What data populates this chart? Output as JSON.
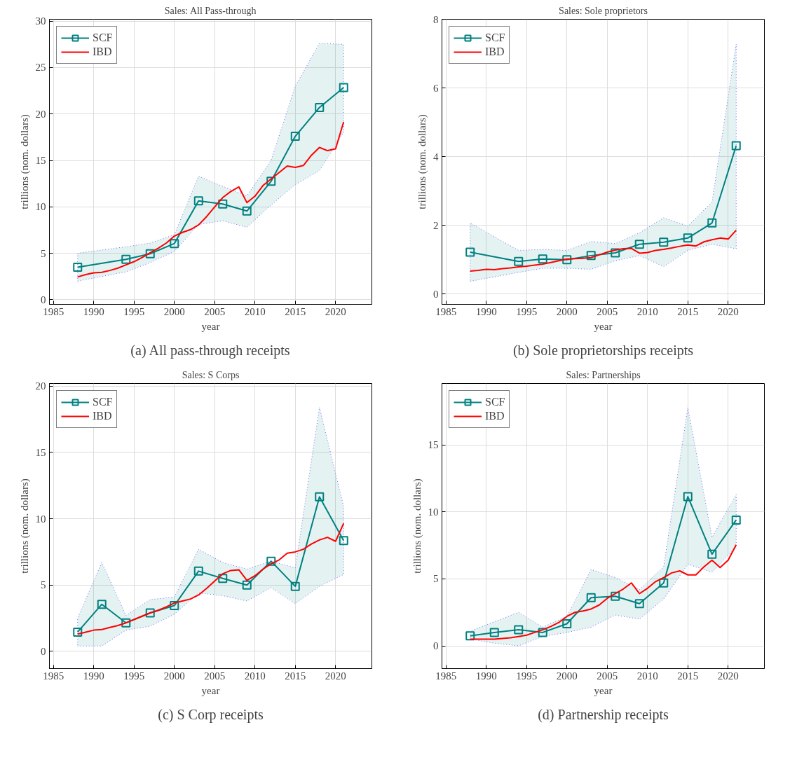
{
  "chart_data": [
    {
      "type": "line",
      "title": "Sales: All Pass-through",
      "xlabel": "year",
      "ylabel": "trillions (nom. dollars)",
      "annotations": [
        "(a) All pass-through receipts"
      ],
      "xlim": [
        1984.5,
        2024.5
      ],
      "xticks": [
        1985,
        1990,
        1995,
        2000,
        2005,
        2010,
        2015,
        2020
      ],
      "ylim": [
        -0.5,
        30.2
      ],
      "yticks": [
        0,
        5,
        10,
        15,
        20,
        25,
        30
      ],
      "grid": true,
      "legend": "top left",
      "series": [
        {
          "name": "SCF",
          "color": "#008080",
          "marker": "square",
          "x": [
            1988,
            1994,
            1997,
            2000,
            2003,
            2006,
            2009,
            2012,
            2015,
            2018,
            2021
          ],
          "values": [
            3.5,
            4.35,
            4.95,
            6.05,
            10.65,
            10.3,
            9.55,
            12.75,
            17.6,
            20.7,
            22.85
          ],
          "lower": [
            2.0,
            3.0,
            4.0,
            5.2,
            8.1,
            8.5,
            7.8,
            10.2,
            12.4,
            13.9,
            18.0
          ],
          "upper": [
            5.0,
            5.7,
            6.1,
            7.0,
            13.3,
            12.2,
            11.2,
            15.0,
            23.0,
            27.6,
            27.5
          ]
        },
        {
          "name": "IBD",
          "color": "#ff0000",
          "marker": "none",
          "x": [
            1988,
            1989,
            1990,
            1991,
            1992,
            1993,
            1994,
            1995,
            1996,
            1997,
            1998,
            1999,
            2000,
            2001,
            2002,
            2003,
            2004,
            2005,
            2006,
            2007,
            2008,
            2009,
            2010,
            2011,
            2012,
            2013,
            2014,
            2015,
            2016,
            2017,
            2018,
            2019,
            2020,
            2021
          ],
          "values": [
            2.45,
            2.7,
            2.9,
            2.95,
            3.15,
            3.4,
            3.75,
            4.1,
            4.55,
            5.05,
            5.55,
            6.1,
            6.85,
            7.25,
            7.55,
            8.05,
            8.95,
            10.0,
            11.0,
            11.65,
            12.15,
            10.45,
            11.15,
            12.3,
            13.0,
            13.7,
            14.4,
            14.25,
            14.45,
            15.55,
            16.4,
            16.05,
            16.25,
            19.15
          ]
        }
      ]
    },
    {
      "type": "line",
      "title": "Sales: Sole proprietors",
      "xlabel": "year",
      "ylabel": "trillions (nom. dollars)",
      "annotations": [
        "(b) Sole proprietorships receipts"
      ],
      "xlim": [
        1984.5,
        2024.5
      ],
      "xticks": [
        1985,
        1990,
        1995,
        2000,
        2005,
        2010,
        2015,
        2020
      ],
      "ylim": [
        -0.3,
        8
      ],
      "yticks": [
        0,
        2,
        4,
        6,
        8
      ],
      "grid": true,
      "legend": "top left",
      "series": [
        {
          "name": "SCF",
          "color": "#008080",
          "marker": "square",
          "x": [
            1988,
            1994,
            1997,
            2000,
            2003,
            2006,
            2009,
            2012,
            2015,
            2018,
            2021
          ],
          "values": [
            1.22,
            0.95,
            1.02,
            1.0,
            1.12,
            1.2,
            1.45,
            1.51,
            1.63,
            2.07,
            4.32
          ],
          "lower": [
            0.37,
            0.63,
            0.75,
            0.75,
            0.72,
            0.97,
            1.12,
            0.8,
            1.27,
            1.45,
            1.32
          ],
          "upper": [
            2.07,
            1.27,
            1.3,
            1.27,
            1.53,
            1.47,
            1.78,
            2.22,
            1.98,
            2.68,
            7.27
          ]
        },
        {
          "name": "IBD",
          "color": "#ff0000",
          "marker": "none",
          "x": [
            1988,
            1989,
            1990,
            1991,
            1992,
            1993,
            1994,
            1995,
            1996,
            1997,
            1998,
            1999,
            2000,
            2001,
            2002,
            2003,
            2004,
            2005,
            2006,
            2007,
            2008,
            2009,
            2010,
            2011,
            2012,
            2013,
            2014,
            2015,
            2016,
            2017,
            2018,
            2019,
            2020,
            2021
          ],
          "values": [
            0.67,
            0.69,
            0.72,
            0.71,
            0.74,
            0.76,
            0.79,
            0.81,
            0.84,
            0.87,
            0.92,
            0.97,
            1.02,
            1.03,
            1.04,
            1.06,
            1.14,
            1.22,
            1.28,
            1.32,
            1.33,
            1.19,
            1.21,
            1.27,
            1.3,
            1.34,
            1.39,
            1.43,
            1.4,
            1.52,
            1.58,
            1.63,
            1.6,
            1.86
          ]
        }
      ]
    },
    {
      "type": "line",
      "title": "Sales: S Corps",
      "xlabel": "year",
      "ylabel": "trillions (nom. dollars)",
      "annotations": [
        "(c) S Corp receipts"
      ],
      "xlim": [
        1984.5,
        2024.5
      ],
      "xticks": [
        1985,
        1990,
        1995,
        2000,
        2005,
        2010,
        2015,
        2020
      ],
      "ylim": [
        -1.3,
        20.2
      ],
      "yticks": [
        0,
        5,
        10,
        15,
        20
      ],
      "grid": true,
      "legend": "top left",
      "series": [
        {
          "name": "SCF",
          "color": "#008080",
          "marker": "square",
          "x": [
            1988,
            1991,
            1994,
            1997,
            2000,
            2003,
            2006,
            2009,
            2012,
            2015,
            2018,
            2021
          ],
          "values": [
            1.45,
            3.55,
            2.15,
            2.9,
            3.45,
            6.05,
            5.5,
            5.0,
            6.8,
            4.9,
            11.65,
            8.35
          ],
          "lower": [
            0.4,
            0.4,
            1.6,
            1.9,
            2.8,
            4.4,
            4.2,
            3.8,
            4.8,
            3.6,
            4.9,
            5.8
          ],
          "upper": [
            2.5,
            6.7,
            2.7,
            3.9,
            4.1,
            7.7,
            6.7,
            6.2,
            6.8,
            6.3,
            18.4,
            10.9
          ]
        },
        {
          "name": "IBD",
          "color": "#ff0000",
          "marker": "none",
          "x": [
            1988,
            1989,
            1990,
            1991,
            1992,
            1993,
            1994,
            1995,
            1996,
            1997,
            1998,
            1999,
            2000,
            2001,
            2002,
            2003,
            2004,
            2005,
            2006,
            2007,
            2008,
            2009,
            2010,
            2011,
            2012,
            2013,
            2014,
            2015,
            2016,
            2017,
            2018,
            2019,
            2020,
            2021
          ],
          "values": [
            1.3,
            1.45,
            1.6,
            1.65,
            1.8,
            1.95,
            2.15,
            2.4,
            2.65,
            2.9,
            3.1,
            3.35,
            3.65,
            3.8,
            3.95,
            4.25,
            4.75,
            5.3,
            5.85,
            6.1,
            6.15,
            5.35,
            5.7,
            6.2,
            6.6,
            6.9,
            7.4,
            7.5,
            7.7,
            8.1,
            8.4,
            8.6,
            8.3,
            9.65
          ]
        }
      ]
    },
    {
      "type": "line",
      "title": "Sales: Partnerships",
      "xlabel": "year",
      "ylabel": "trillions (nom. dollars)",
      "annotations": [
        "(d) Partnership receipts"
      ],
      "xlim": [
        1984.5,
        2024.5
      ],
      "xticks": [
        1985,
        1990,
        1995,
        2000,
        2005,
        2010,
        2015,
        2020
      ],
      "ylim": [
        -1.7,
        19.6
      ],
      "yticks": [
        0,
        5,
        10,
        15
      ],
      "grid": true,
      "legend": "top left",
      "series": [
        {
          "name": "SCF",
          "color": "#008080",
          "marker": "square",
          "x": [
            1988,
            1991,
            1994,
            1997,
            2000,
            2003,
            2006,
            2009,
            2012,
            2015,
            2018,
            2021
          ],
          "values": [
            0.75,
            1.0,
            1.2,
            1.0,
            1.65,
            3.6,
            3.7,
            3.15,
            4.7,
            11.15,
            6.85,
            9.4
          ],
          "lower": [
            0.5,
            0.2,
            0.0,
            0.7,
            1.0,
            1.4,
            2.3,
            2.0,
            3.5,
            6.1,
            5.5,
            7.4
          ],
          "upper": [
            1.1,
            1.8,
            2.5,
            1.4,
            2.2,
            5.7,
            5.1,
            4.2,
            5.9,
            17.8,
            8.1,
            11.3
          ]
        },
        {
          "name": "IBD",
          "color": "#ff0000",
          "marker": "none",
          "x": [
            1988,
            1989,
            1990,
            1991,
            1992,
            1993,
            1994,
            1995,
            1996,
            1997,
            1998,
            1999,
            2000,
            2001,
            2002,
            2003,
            2004,
            2005,
            2006,
            2007,
            2008,
            2009,
            2010,
            2011,
            2012,
            2013,
            2014,
            2015,
            2016,
            2017,
            2018,
            2019,
            2020,
            2021
          ],
          "values": [
            0.5,
            0.5,
            0.5,
            0.5,
            0.55,
            0.6,
            0.7,
            0.8,
            1.0,
            1.2,
            1.45,
            1.75,
            2.2,
            2.5,
            2.6,
            2.75,
            3.05,
            3.55,
            3.9,
            4.25,
            4.7,
            3.9,
            4.3,
            4.8,
            5.1,
            5.45,
            5.6,
            5.3,
            5.3,
            5.9,
            6.4,
            5.85,
            6.4,
            7.55
          ]
        }
      ]
    }
  ]
}
